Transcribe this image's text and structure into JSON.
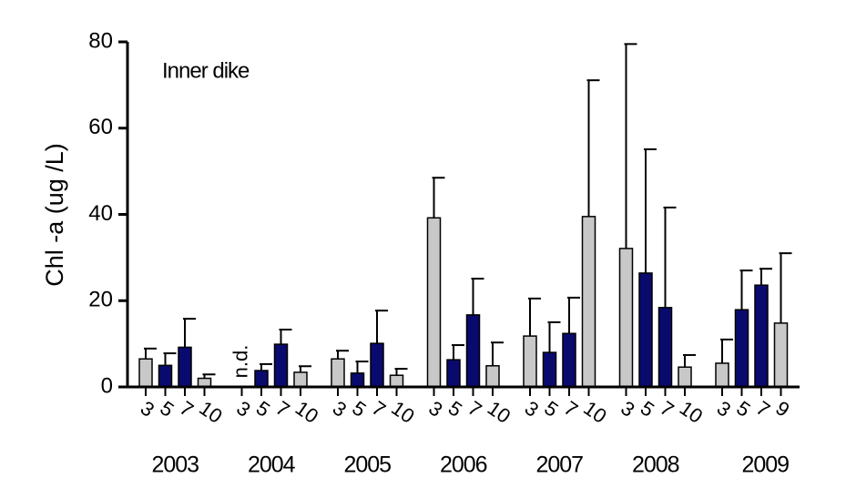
{
  "chart_data": {
    "type": "bar",
    "y_label": "Chl -a (ug /L)",
    "annotation": "Inner dike",
    "ylim": [
      0,
      80
    ],
    "yticks": [
      0,
      20,
      40,
      60,
      80
    ],
    "groups": [
      {
        "name": "2003",
        "categories": [
          "3",
          "5",
          "7",
          "10"
        ],
        "values": [
          6.5,
          5,
          9.2,
          2
        ],
        "errors": [
          2.4,
          2.8,
          6.6,
          0.9
        ],
        "colors": [
          "#c8c8c8",
          "#0a0a6e",
          "#0a0a6e",
          "#c8c8c8"
        ]
      },
      {
        "name": "2004",
        "categories": [
          "3",
          "5",
          "7",
          "10"
        ],
        "values": [
          null,
          3.8,
          9.9,
          3.4
        ],
        "errors": [
          null,
          1.5,
          3.4,
          1.4
        ],
        "value_labels": [
          "n.d.",
          null,
          null,
          null
        ],
        "colors": [
          "#c8c8c8",
          "#0a0a6e",
          "#0a0a6e",
          "#c8c8c8"
        ]
      },
      {
        "name": "2005",
        "categories": [
          "3",
          "5",
          "7",
          "10"
        ],
        "values": [
          6.5,
          3.2,
          10.1,
          2.7
        ],
        "errors": [
          1.9,
          2.7,
          7.6,
          1.5
        ],
        "colors": [
          "#c8c8c8",
          "#0a0a6e",
          "#0a0a6e",
          "#c8c8c8"
        ]
      },
      {
        "name": "2006",
        "categories": [
          "3",
          "5",
          "7",
          "10"
        ],
        "values": [
          39.2,
          6.3,
          16.7,
          4.9
        ],
        "errors": [
          9.3,
          3.4,
          8.4,
          5.4
        ],
        "colors": [
          "#c8c8c8",
          "#0a0a6e",
          "#0a0a6e",
          "#c8c8c8"
        ]
      },
      {
        "name": "2007",
        "categories": [
          "3",
          "5",
          "7",
          "10"
        ],
        "values": [
          11.8,
          8,
          12.4,
          39.5
        ],
        "errors": [
          8.7,
          7,
          8.3,
          31.6
        ],
        "colors": [
          "#c8c8c8",
          "#0a0a6e",
          "#0a0a6e",
          "#c8c8c8"
        ]
      },
      {
        "name": "2008",
        "categories": [
          "3",
          "5",
          "7",
          "10"
        ],
        "values": [
          32.1,
          26.4,
          18.4,
          4.6
        ],
        "errors": [
          47.4,
          28.7,
          23.2,
          2.8
        ],
        "colors": [
          "#c8c8c8",
          "#0a0a6e",
          "#0a0a6e",
          "#c8c8c8"
        ]
      },
      {
        "name": "2009",
        "categories": [
          "3",
          "5",
          "7",
          "9"
        ],
        "values": [
          5.5,
          17.9,
          23.6,
          14.8
        ],
        "errors": [
          5.5,
          9.1,
          3.8,
          16.2
        ],
        "colors": [
          "#c8c8c8",
          "#0a0a6e",
          "#0a0a6e",
          "#c8c8c8"
        ]
      }
    ]
  }
}
